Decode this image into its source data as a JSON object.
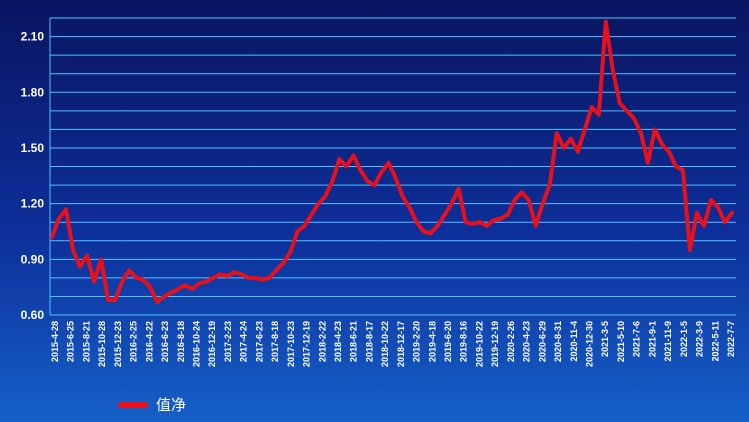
{
  "chart_data": {
    "type": "line",
    "title": "",
    "xlabel": "",
    "ylabel": "",
    "ylim": [
      0.6,
      2.2
    ],
    "y_ticks": [
      "0.60",
      "0.90",
      "1.20",
      "1.50",
      "1.80",
      "2.10"
    ],
    "x_tick_labels": [
      "2015-4-28",
      "2015-6-25",
      "2015-8-21",
      "2015-10-28",
      "2015-12-23",
      "2016-2-25",
      "2016-4-22",
      "2016-6-23",
      "2016-8-18",
      "2016-10-24",
      "2016-12-19",
      "2017-2-23",
      "2017-4-24",
      "2017-6-23",
      "2017-8-18",
      "2017-10-23",
      "2017-12-19",
      "2018-2-22",
      "2018-4-23",
      "2018-6-21",
      "2018-8-17",
      "2018-10-22",
      "2018-12-17",
      "2019-2-20",
      "2019-4-18",
      "2019-6-20",
      "2019-8-16",
      "2019-10-22",
      "2019-12-19",
      "2020-2-26",
      "2020-4-23",
      "2020-6-29",
      "2020-8-31",
      "2020-11-4",
      "2020-12-30",
      "2021-3-5",
      "2021-5-10",
      "2021-7-6",
      "2021-9-1",
      "2021-11-9",
      "2022-1-5",
      "2022-3-9",
      "2022-5-11",
      "2022-7-7"
    ],
    "grid": true,
    "legend_position": "bottom-left",
    "colors": {
      "line": "#e8101a",
      "grid": "#4fc3ff",
      "axis_text": "#ffffff"
    },
    "series": [
      {
        "name": "值净",
        "points": [
          [
            0,
            1.02
          ],
          [
            1,
            1.12
          ],
          [
            2,
            1.17
          ],
          [
            3,
            0.95
          ],
          [
            4,
            0.86
          ],
          [
            5,
            0.92
          ],
          [
            6,
            0.78
          ],
          [
            7,
            0.9
          ],
          [
            8,
            0.68
          ],
          [
            9,
            0.68
          ],
          [
            10,
            0.78
          ],
          [
            11,
            0.84
          ],
          [
            12,
            0.8
          ],
          [
            13,
            0.79
          ],
          [
            14,
            0.75
          ],
          [
            15,
            0.67
          ],
          [
            16,
            0.7
          ],
          [
            17,
            0.72
          ],
          [
            18,
            0.74
          ],
          [
            19,
            0.76
          ],
          [
            20,
            0.74
          ],
          [
            21,
            0.77
          ],
          [
            22,
            0.78
          ],
          [
            23,
            0.8
          ],
          [
            24,
            0.82
          ],
          [
            25,
            0.81
          ],
          [
            26,
            0.83
          ],
          [
            27,
            0.82
          ],
          [
            28,
            0.8
          ],
          [
            29,
            0.8
          ],
          [
            30,
            0.79
          ],
          [
            31,
            0.8
          ],
          [
            32,
            0.84
          ],
          [
            33,
            0.88
          ],
          [
            34,
            0.94
          ],
          [
            35,
            1.05
          ],
          [
            36,
            1.08
          ],
          [
            37,
            1.14
          ],
          [
            38,
            1.2
          ],
          [
            39,
            1.24
          ],
          [
            40,
            1.32
          ],
          [
            41,
            1.44
          ],
          [
            42,
            1.4
          ],
          [
            43,
            1.46
          ],
          [
            44,
            1.38
          ],
          [
            45,
            1.32
          ],
          [
            46,
            1.3
          ],
          [
            47,
            1.37
          ],
          [
            48,
            1.42
          ],
          [
            49,
            1.34
          ],
          [
            50,
            1.24
          ],
          [
            51,
            1.18
          ],
          [
            52,
            1.1
          ],
          [
            53,
            1.05
          ],
          [
            54,
            1.04
          ],
          [
            55,
            1.08
          ],
          [
            56,
            1.14
          ],
          [
            57,
            1.2
          ],
          [
            58,
            1.28
          ],
          [
            59,
            1.1
          ],
          [
            60,
            1.09
          ],
          [
            61,
            1.1
          ],
          [
            62,
            1.08
          ],
          [
            63,
            1.11
          ],
          [
            64,
            1.12
          ],
          [
            65,
            1.14
          ],
          [
            66,
            1.22
          ],
          [
            67,
            1.26
          ],
          [
            68,
            1.22
          ],
          [
            69,
            1.08
          ],
          [
            70,
            1.2
          ],
          [
            71,
            1.3
          ],
          [
            72,
            1.58
          ],
          [
            73,
            1.5
          ],
          [
            74,
            1.55
          ],
          [
            75,
            1.48
          ],
          [
            76,
            1.6
          ],
          [
            77,
            1.72
          ],
          [
            78,
            1.68
          ],
          [
            79,
            2.18
          ],
          [
            80,
            1.92
          ],
          [
            81,
            1.74
          ],
          [
            82,
            1.7
          ],
          [
            83,
            1.66
          ],
          [
            84,
            1.58
          ],
          [
            85,
            1.42
          ],
          [
            86,
            1.6
          ],
          [
            87,
            1.52
          ],
          [
            88,
            1.48
          ],
          [
            89,
            1.4
          ],
          [
            90,
            1.38
          ],
          [
            91,
            0.95
          ],
          [
            92,
            1.15
          ],
          [
            93,
            1.08
          ],
          [
            94,
            1.22
          ],
          [
            95,
            1.18
          ],
          [
            96,
            1.1
          ],
          [
            97,
            1.15
          ]
        ]
      }
    ]
  },
  "legend": {
    "label": "值净",
    "color": "#e8101a"
  }
}
